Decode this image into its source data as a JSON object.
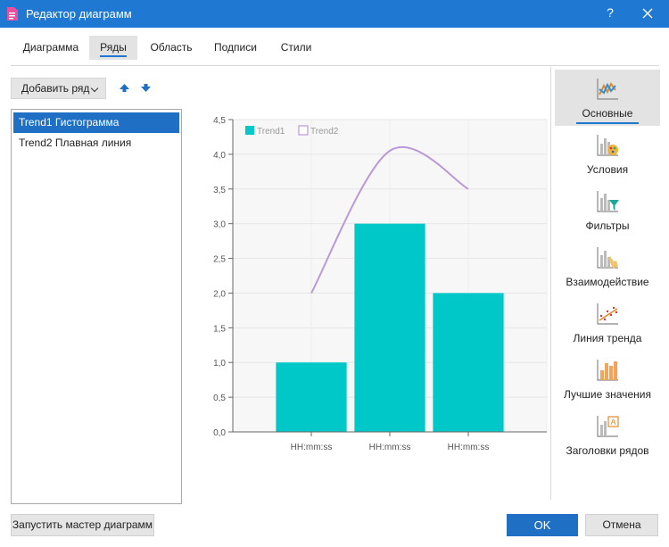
{
  "window": {
    "title": "Редактор диаграмм",
    "help_label": "?",
    "accent": "#1f78d1"
  },
  "tabs": [
    {
      "label": "Диаграмма",
      "active": false
    },
    {
      "label": "Ряды",
      "active": true
    },
    {
      "label": "Область",
      "active": false
    },
    {
      "label": "Подписи",
      "active": false
    },
    {
      "label": "Стили",
      "active": false
    }
  ],
  "series_panel": {
    "add_label": "Добавить ряд",
    "move_up_icon": "arrow-up-icon",
    "move_down_icon": "arrow-down-icon",
    "items": [
      {
        "label": "Trend1 Гистограмма",
        "selected": true
      },
      {
        "label": "Trend2 Плавная линия",
        "selected": false
      }
    ]
  },
  "categories": [
    {
      "label": "Основные",
      "icon": "line-chart-icon",
      "active": true
    },
    {
      "label": "Условия",
      "icon": "palette-chart-icon",
      "active": false
    },
    {
      "label": "Фильтры",
      "icon": "filter-chart-icon",
      "active": false
    },
    {
      "label": "Взаимодействие",
      "icon": "hand-chart-icon",
      "active": false
    },
    {
      "label": "Линия тренда",
      "icon": "trendline-icon",
      "active": false
    },
    {
      "label": "Лучшие значения",
      "icon": "top-values-icon",
      "active": false
    },
    {
      "label": "Заголовки рядов",
      "icon": "series-titles-icon",
      "active": false
    }
  ],
  "buttons": {
    "wizard": "Запустить мастер диаграмм",
    "ok": "OK",
    "cancel": "Отмена"
  },
  "chart_data": {
    "type": "bar",
    "categories": [
      "HH:mm:ss",
      "HH:mm:ss",
      "HH:mm:ss"
    ],
    "ylim": [
      0,
      4.5
    ],
    "yticks": [
      "0,0",
      "0,5",
      "1,0",
      "1,5",
      "2,0",
      "2,5",
      "3,0",
      "3,5",
      "4,0",
      "4,5"
    ],
    "grid": true,
    "legend": "top-left",
    "series": [
      {
        "name": "Trend1",
        "type": "bar",
        "color": "#00c8c8",
        "values": [
          1.0,
          3.0,
          2.0
        ]
      },
      {
        "name": "Trend2",
        "type": "line",
        "smooth": true,
        "color": "#b89ad8",
        "values": [
          2.0,
          4.05,
          3.5
        ]
      }
    ]
  }
}
